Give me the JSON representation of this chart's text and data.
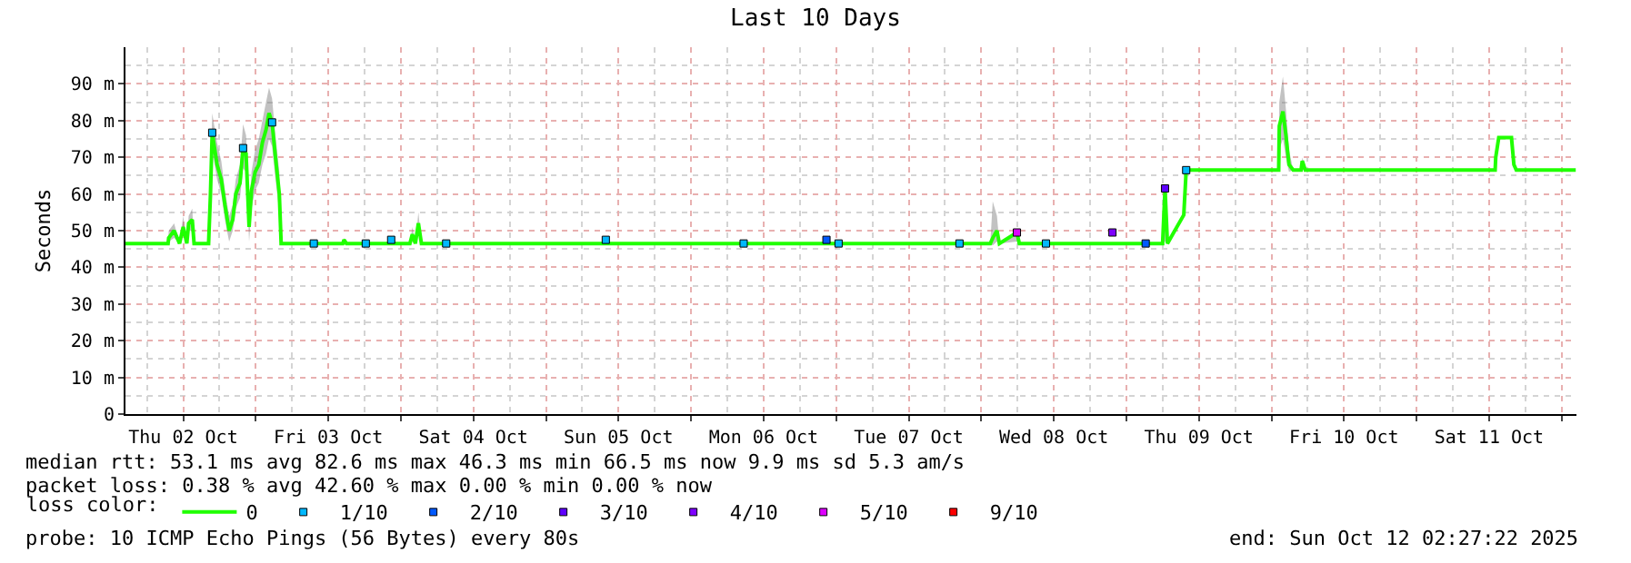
{
  "chart_data": {
    "type": "line",
    "title": "Last 10 Days",
    "ylabel": "Seconds",
    "legend_title": "loss color:",
    "legend": "bottom",
    "grid": true,
    "xlim": [
      "2025-10-02T02:27",
      "2025-10-12T02:27"
    ],
    "xticks": [
      {
        "value": "2025-10-02T12:00",
        "label": "Thu 02 Oct"
      },
      {
        "value": "2025-10-03T00:00",
        "label": null
      },
      {
        "value": "2025-10-03T12:00",
        "label": "Fri 03 Oct"
      },
      {
        "value": "2025-10-04T00:00",
        "label": null
      },
      {
        "value": "2025-10-04T12:00",
        "label": "Sat 04 Oct"
      },
      {
        "value": "2025-10-05T00:00",
        "label": null
      },
      {
        "value": "2025-10-05T12:00",
        "label": "Sun 05 Oct"
      },
      {
        "value": "2025-10-06T00:00",
        "label": null
      },
      {
        "value": "2025-10-06T12:00",
        "label": "Mon 06 Oct"
      },
      {
        "value": "2025-10-07T00:00",
        "label": null
      },
      {
        "value": "2025-10-07T12:00",
        "label": "Tue 07 Oct"
      },
      {
        "value": "2025-10-08T00:00",
        "label": null
      },
      {
        "value": "2025-10-08T12:00",
        "label": "Wed 08 Oct"
      },
      {
        "value": "2025-10-09T00:00",
        "label": null
      },
      {
        "value": "2025-10-09T12:00",
        "label": "Thu 09 Oct"
      },
      {
        "value": "2025-10-10T00:00",
        "label": null
      },
      {
        "value": "2025-10-10T12:00",
        "label": "Fri 10 Oct"
      },
      {
        "value": "2025-10-11T00:00",
        "label": null
      },
      {
        "value": "2025-10-11T12:00",
        "label": "Sat 11 Oct"
      },
      {
        "value": "2025-10-12T00:00",
        "label": null
      }
    ],
    "ylim": [
      0,
      100
    ],
    "yticks": [
      0,
      {
        "value": 10,
        "label": "10 m"
      },
      {
        "value": 20,
        "label": "20 m"
      },
      {
        "value": 30,
        "label": "30 m"
      },
      {
        "value": 40,
        "label": "40 m"
      },
      {
        "value": 50,
        "label": "50 m"
      },
      {
        "value": 60,
        "label": "60 m"
      },
      {
        "value": 70,
        "label": "70 m"
      },
      {
        "value": 80,
        "label": "80 m"
      },
      {
        "value": 90,
        "label": "90 m"
      }
    ],
    "series": [
      {
        "name": "0",
        "color": "#20ff00",
        "x": [
          "2025-10-02T02:27",
          "2025-10-02T09:30",
          "2025-10-02T09:36",
          "2025-10-02T10:30",
          "2025-10-02T11:24",
          "2025-10-02T12:00",
          "2025-10-02T12:36",
          "2025-10-02T12:54",
          "2025-10-02T13:30",
          "2025-10-02T13:48",
          "2025-10-02T16:12",
          "2025-10-02T16:30",
          "2025-10-02T16:48",
          "2025-10-02T17:36",
          "2025-10-02T18:18",
          "2025-10-02T18:54",
          "2025-10-02T19:36",
          "2025-10-02T20:12",
          "2025-10-02T20:42",
          "2025-10-02T21:24",
          "2025-10-02T21:54",
          "2025-10-02T22:24",
          "2025-10-02T22:54",
          "2025-10-02T23:18",
          "2025-10-02T23:54",
          "2025-10-03T00:30",
          "2025-10-03T01:06",
          "2025-10-03T01:42",
          "2025-10-03T02:12",
          "2025-10-03T02:42",
          "2025-10-03T03:12",
          "2025-10-03T03:54",
          "2025-10-03T04:12",
          "2025-10-03T14:24",
          "2025-10-03T14:36",
          "2025-10-03T15:00",
          "2025-10-04T01:30",
          "2025-10-04T01:54",
          "2025-10-04T02:24",
          "2025-10-04T02:54",
          "2025-10-04T03:24",
          "2025-10-08T01:30",
          "2025-10-08T01:54",
          "2025-10-08T02:36",
          "2025-10-08T03:00",
          "2025-10-08T05:54",
          "2025-10-08T06:18",
          "2025-10-09T06:00",
          "2025-10-09T06:24",
          "2025-10-09T06:48",
          "2025-10-09T09:30",
          "2025-10-09T09:54",
          "2025-10-10T01:12",
          "2025-10-10T01:18",
          "2025-10-10T01:54",
          "2025-10-10T02:24",
          "2025-10-10T02:54",
          "2025-10-10T03:36",
          "2025-10-10T04:54",
          "2025-10-10T05:06",
          "2025-10-10T05:36",
          "2025-10-11T13:00",
          "2025-10-11T13:06",
          "2025-10-11T13:36",
          "2025-10-11T15:42",
          "2025-10-11T16:06",
          "2025-10-11T16:30",
          "2025-10-12T02:20"
        ],
        "values": [
          46.5,
          46.5,
          48,
          50,
          46.5,
          51,
          46.5,
          52,
          53,
          46.5,
          46.5,
          59.5,
          76.7,
          68,
          64,
          57,
          50,
          53,
          60,
          63,
          72.5,
          71,
          51,
          61,
          66,
          68,
          74,
          77.5,
          82,
          79.5,
          71,
          60,
          46.5,
          46.5,
          47.5,
          46.5,
          46.5,
          49,
          46.5,
          52,
          46.5,
          46.5,
          48,
          50,
          46.5,
          49.5,
          46.5,
          46.5,
          61.5,
          46.5,
          54.3,
          66.5,
          66.5,
          78.5,
          82.5,
          76,
          68,
          66.5,
          66.5,
          69,
          66.5,
          66.5,
          70,
          75.4,
          75.4,
          68,
          66.5,
          66.5
        ],
        "lower": [
          46.5,
          46.5,
          47,
          48,
          46.5,
          49,
          46.5,
          50,
          50,
          46.5,
          46.5,
          57,
          72,
          64,
          60,
          53,
          47,
          50,
          56,
          59,
          67,
          66,
          47,
          56,
          61,
          63,
          68,
          71,
          75,
          73,
          65,
          55,
          46.5,
          46.5,
          47,
          46.5,
          46.5,
          47,
          46.5,
          49,
          46.5,
          46.5,
          46,
          47,
          46.5,
          47,
          46.5,
          46.5,
          47,
          46.5,
          54.3,
          66.5,
          66.5,
          72,
          75,
          70,
          66,
          66.5,
          66.5,
          66.5,
          66.5,
          66.5,
          70,
          75.4,
          75.4,
          68,
          66.5,
          66.5
        ],
        "upper": [
          46.5,
          46.5,
          50,
          52,
          46.5,
          54,
          46.5,
          54,
          56,
          46.5,
          46.5,
          62,
          82,
          74,
          69,
          61,
          54,
          57,
          64,
          68,
          79,
          76,
          56,
          66,
          72,
          75,
          80,
          85,
          89,
          86,
          77,
          66,
          46.5,
          46.5,
          48,
          46.5,
          46.5,
          51,
          46.5,
          55,
          46.5,
          46.5,
          58,
          54,
          46.5,
          50,
          46.5,
          46.5,
          61.5,
          46.5,
          54.3,
          66.5,
          66.5,
          85,
          92,
          83,
          72,
          66.5,
          66.5,
          70,
          66.5,
          66.5,
          70,
          75.4,
          75.4,
          68,
          66.5,
          66.5
        ]
      },
      {
        "name": "1/10",
        "type": "scatter",
        "marker": "square",
        "color": "#00b8ff",
        "x": [
          "2025-10-02T16:48",
          "2025-10-02T21:54",
          "2025-10-03T02:42",
          "2025-10-03T09:36",
          "2025-10-03T18:12",
          "2025-10-03T22:24",
          "2025-10-04T07:30",
          "2025-10-05T09:54",
          "2025-10-06T08:42",
          "2025-10-07T00:24",
          "2025-10-07T20:24",
          "2025-10-08T10:42",
          "2025-10-09T09:54"
        ],
        "values": [
          76.7,
          72.5,
          79.5,
          46.5,
          46.5,
          47.5,
          46.5,
          47.5,
          46.5,
          46.5,
          46.5,
          46.5,
          66.5
        ]
      },
      {
        "name": "2/10",
        "type": "scatter",
        "marker": "square",
        "color": "#0059ff",
        "x": [
          "2025-10-06T22:24",
          "2025-10-09T03:12"
        ],
        "values": [
          47.5,
          46.5
        ]
      },
      {
        "name": "3/10",
        "type": "scatter",
        "marker": "square",
        "color": "#5e00ff",
        "x": [
          "2025-10-09T06:24"
        ],
        "values": [
          61.5
        ]
      },
      {
        "name": "4/10",
        "type": "scatter",
        "marker": "square",
        "color": "#7e00ff",
        "x": [
          "2025-10-08T21:42"
        ],
        "values": [
          49.5
        ]
      },
      {
        "name": "5/10",
        "type": "scatter",
        "marker": "square",
        "color": "#dd00ff",
        "x": [
          "2025-10-08T05:54"
        ],
        "values": [
          49.5
        ]
      },
      {
        "name": "9/10",
        "type": "scatter",
        "marker": "square",
        "color": "#ff0000"
      }
    ],
    "annotations": [
      "median rtt: 53.1 ms avg 82.6 ms max 46.3 ms min 66.5 ms now 9.9 ms sd 5.3 am/s",
      "packet loss: 0.38 % avg 42.60 % max 0.00 % min 0.00 % now",
      "probe: 10 ICMP Echo Pings (56 Bytes) every 80s",
      "end: Sun Oct 12 02:27:22 2025"
    ]
  }
}
